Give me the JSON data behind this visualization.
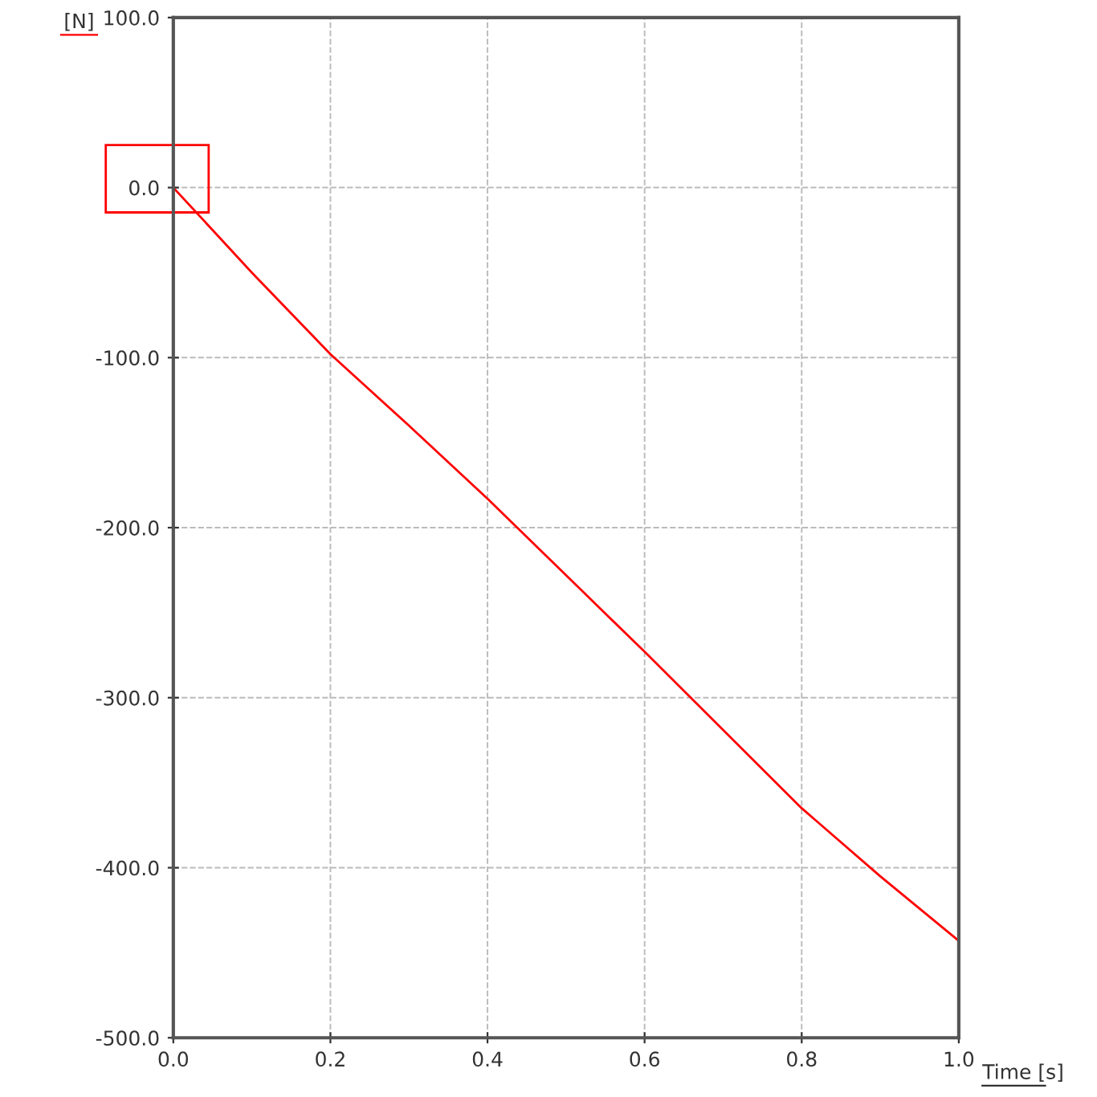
{
  "chart_data": {
    "type": "line",
    "xlabel": "Time [s]",
    "ylabel": "[N]",
    "x": [
      0,
      0.05,
      0.1,
      0.2,
      0.3,
      0.4,
      0.5,
      0.6,
      0.7,
      0.8,
      0.9,
      1.0
    ],
    "series": [
      {
        "color": "#ff0000",
        "values": [
          0,
          -25,
          -50,
          -98,
          -140,
          -183,
          -228,
          -273,
          -319,
          -365,
          -405,
          -443
        ]
      }
    ],
    "xlim": [
      0,
      1.0
    ],
    "ylim": [
      -500,
      100
    ],
    "xticks": [
      {
        "value": 0,
        "label": "0.0"
      },
      0.2,
      0.4,
      0.6,
      0.8,
      {
        "value": 1,
        "label": "1.0"
      }
    ],
    "yticks": [
      {
        "value": -500,
        "label": "-500.0"
      },
      {
        "value": -400,
        "label": "-400.0"
      },
      {
        "value": -300,
        "label": "-300.0"
      },
      {
        "value": -200,
        "label": "-200.0"
      },
      {
        "value": -100,
        "label": "-100.0"
      },
      {
        "value": 0,
        "label": "0.0"
      },
      {
        "value": 100,
        "label": "100.0"
      }
    ],
    "grid": true,
    "legend": false
  }
}
